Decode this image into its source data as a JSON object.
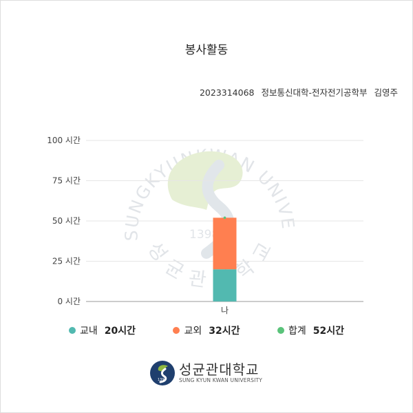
{
  "title": "봉사활동",
  "student": {
    "id": "2023314068",
    "department": "정보통신대학-전자전기공학부",
    "name": "김영주"
  },
  "watermark": {
    "arc_text": "SUNGKYUNKWAN UNIVERSITY",
    "year": "1398",
    "korean": "성균관대학교"
  },
  "colors": {
    "inside": "#52b9b0",
    "outside": "#ff7f50",
    "total": "#5ac37a",
    "grid": "#e6e6e6"
  },
  "chart_data": {
    "type": "bar",
    "stacked": true,
    "categories": [
      "나"
    ],
    "series": [
      {
        "name": "교내",
        "values": [
          20
        ]
      },
      {
        "name": "교외",
        "values": [
          32
        ]
      }
    ],
    "total_marker": [
      52
    ],
    "ylim": [
      0,
      100
    ],
    "yticks": [
      0,
      25,
      50,
      75,
      100
    ],
    "ytick_labels": [
      "0 시간",
      "25 시간",
      "50 시간",
      "75 시간",
      "100 시간"
    ],
    "grid": true
  },
  "legend": [
    {
      "label": "교내",
      "value": "20시간"
    },
    {
      "label": "교외",
      "value": "32시간"
    },
    {
      "label": "합계",
      "value": "52시간"
    }
  ],
  "footer": {
    "korean": "성균관대학교",
    "english": "SUNG KYUN KWAN UNIVERSITY",
    "logo_year": "1398"
  }
}
